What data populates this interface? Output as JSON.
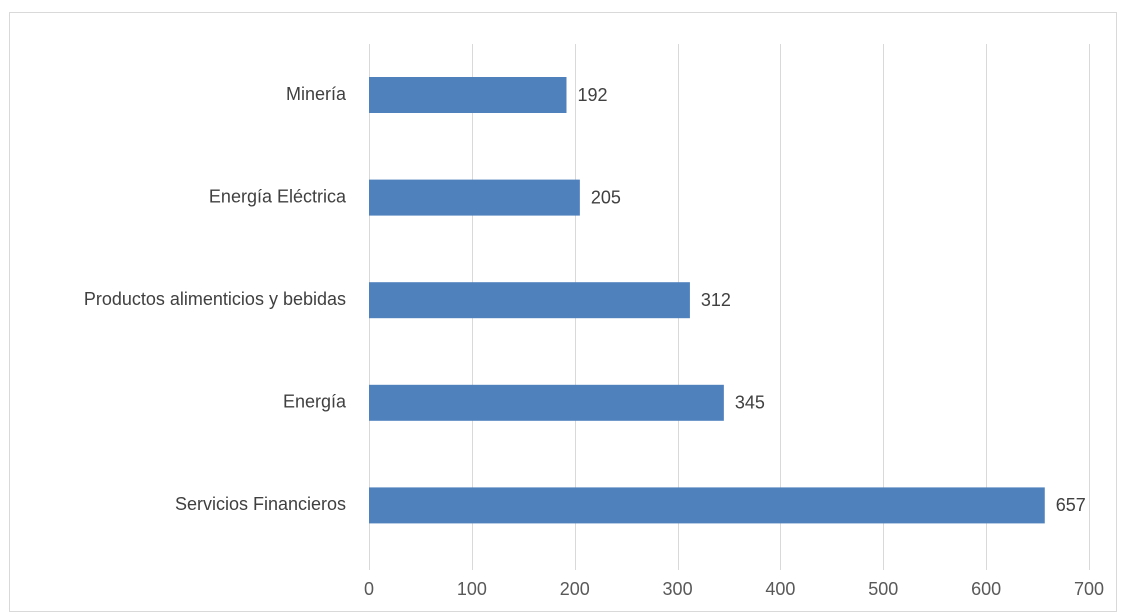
{
  "chart_data": {
    "type": "bar",
    "orientation": "horizontal",
    "title": "",
    "xlabel": "",
    "ylabel": "",
    "categories": [
      "Minería",
      "Energía Eléctrica",
      "Productos alimenticios y bebidas",
      "Energía",
      "Servicios Financieros"
    ],
    "series": [
      {
        "values": [
          192,
          205,
          312,
          345,
          657
        ],
        "color": "#4f81bd"
      }
    ],
    "xlim": [
      0,
      700
    ],
    "xticks": [
      0,
      100,
      200,
      300,
      400,
      500,
      600,
      700
    ],
    "data_labels": true,
    "grid": true,
    "legend": "none"
  }
}
